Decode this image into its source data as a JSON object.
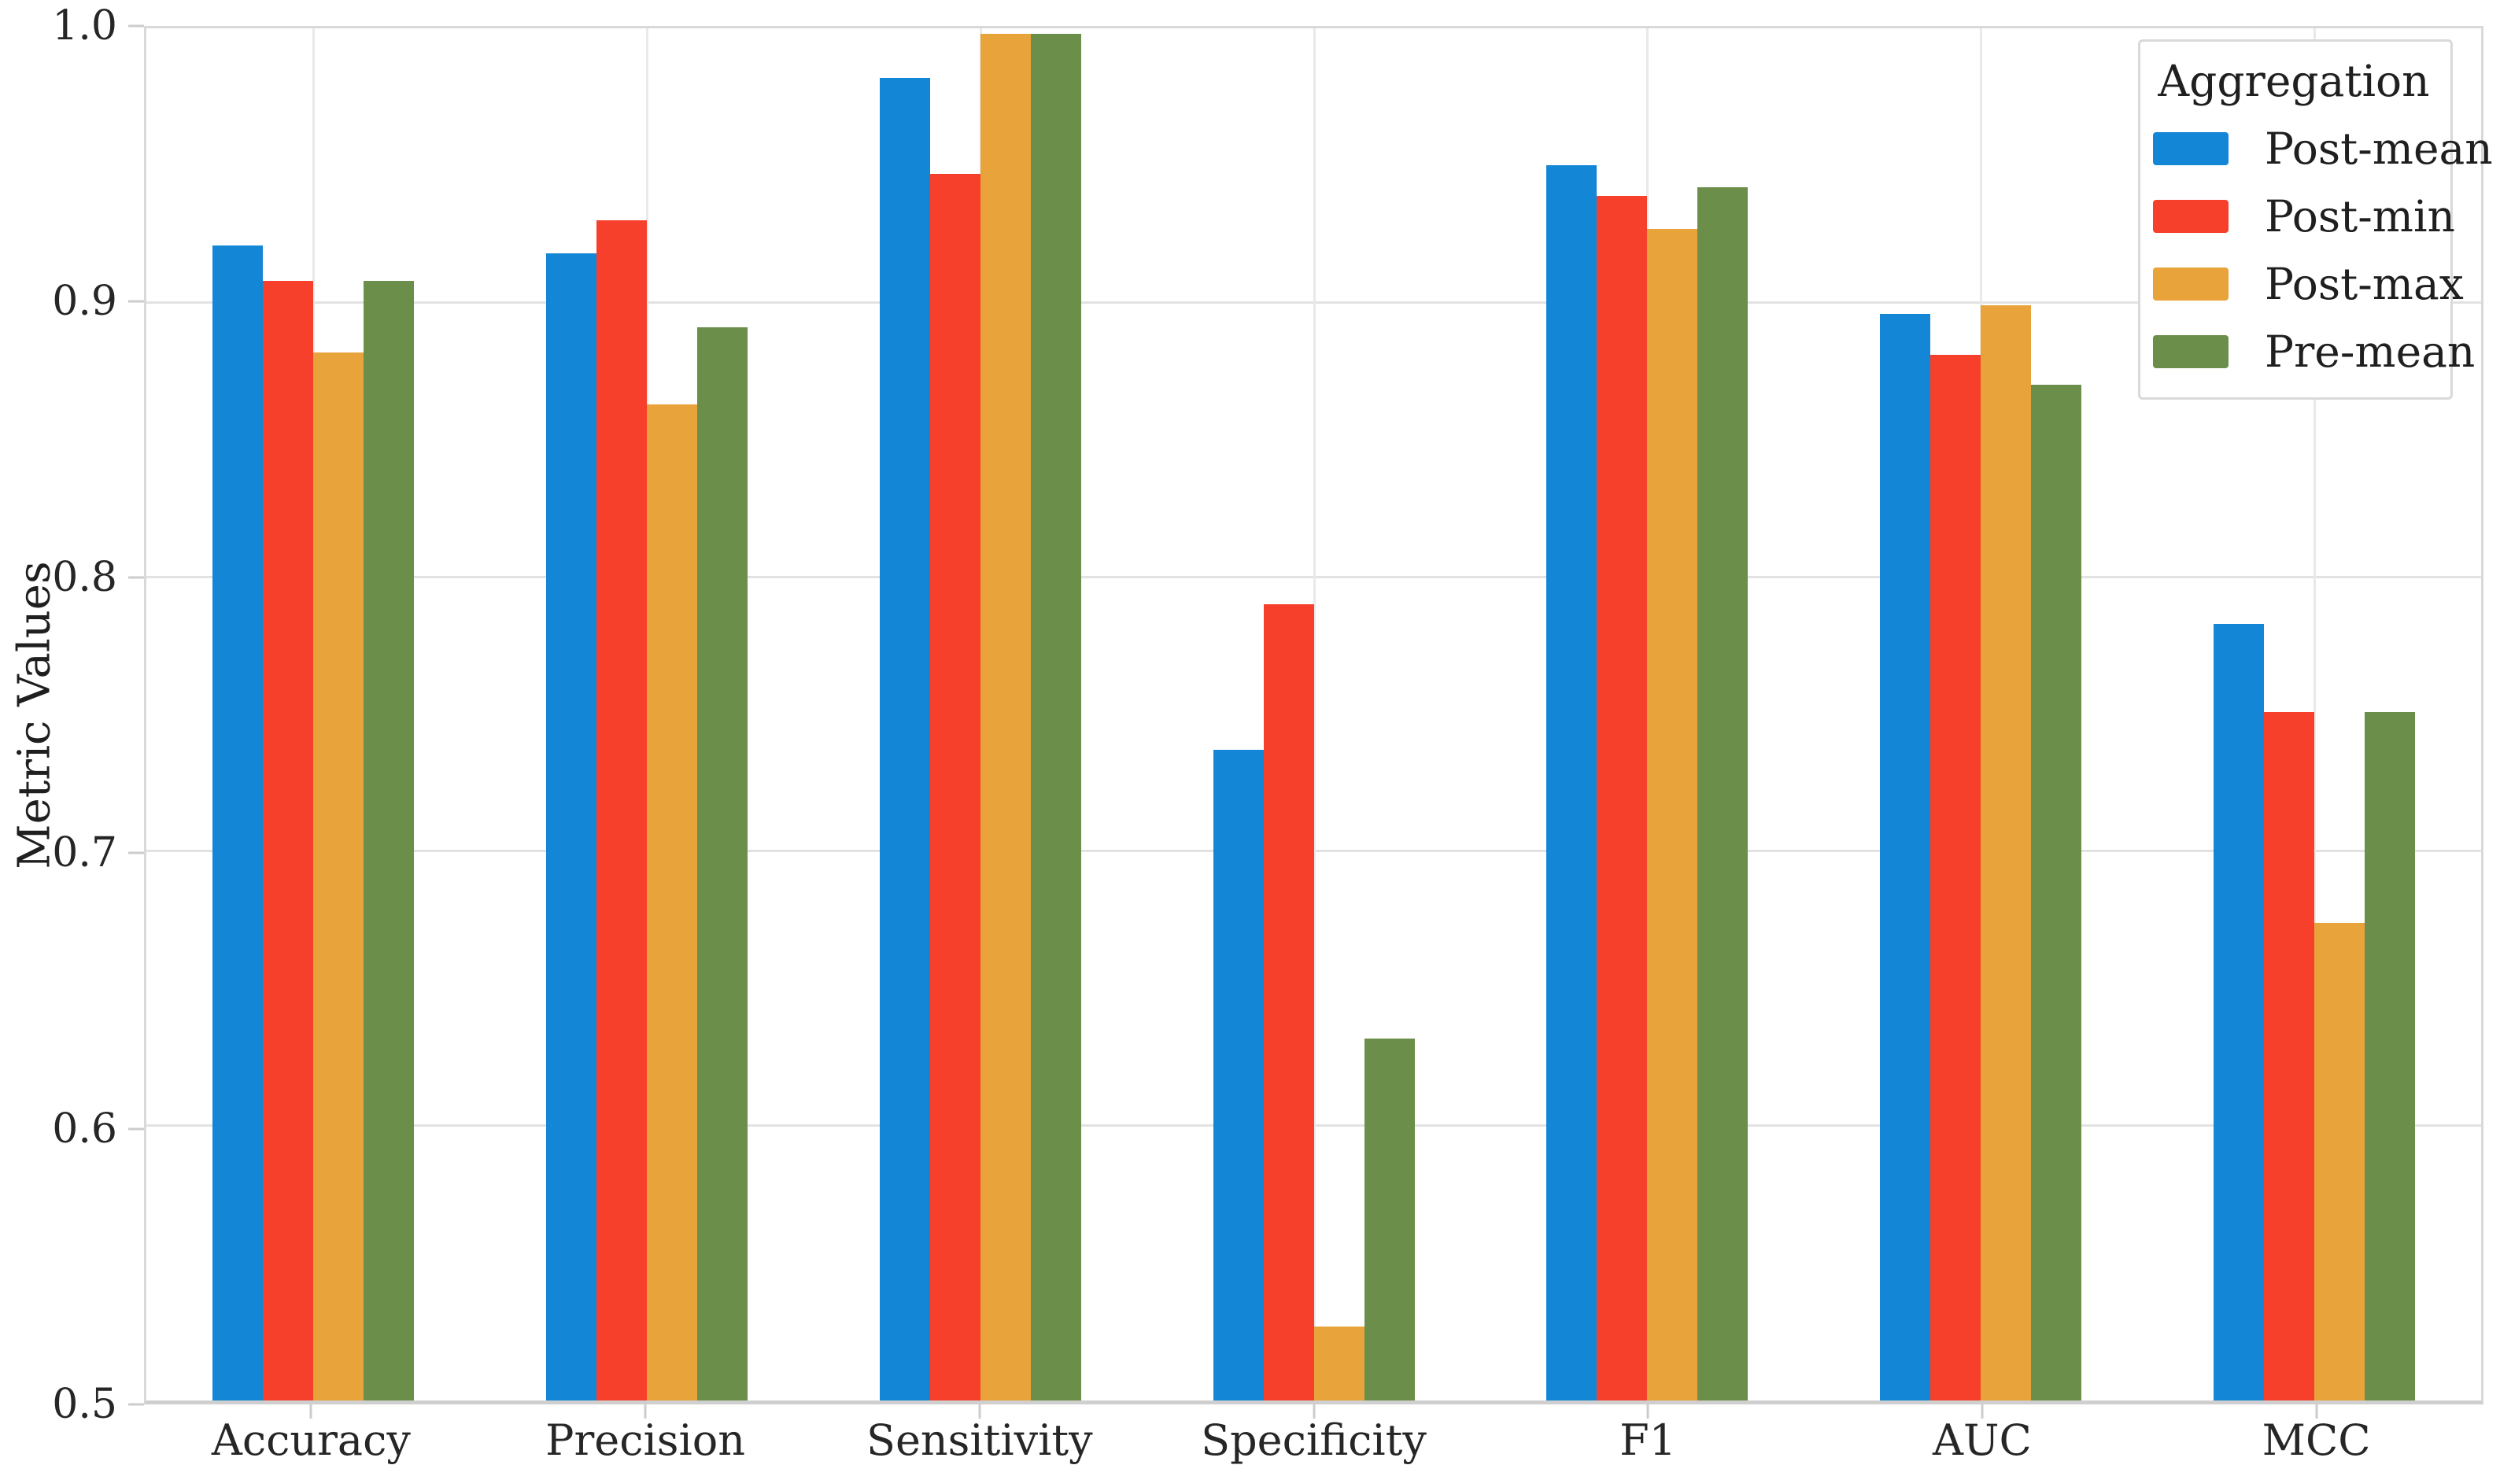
{
  "chart_data": {
    "type": "bar",
    "title": "",
    "xlabel": "",
    "ylabel": "Metric Values",
    "ylim": [
      0.5,
      1.0
    ],
    "yticks": [
      "0.5",
      "0.6",
      "0.7",
      "0.8",
      "0.9",
      "1.0"
    ],
    "grid": true,
    "legend_title": "Aggregation",
    "legend_position": "upper right",
    "categories": [
      "Accuracy",
      "Precision",
      "Sensitivity",
      "Specificity",
      "F1",
      "AUC",
      "MCC"
    ],
    "series": [
      {
        "name": "Post-mean",
        "color": "#1386d6",
        "values": [
          0.921,
          0.918,
          0.982,
          0.737,
          0.95,
          0.896,
          0.783
        ]
      },
      {
        "name": "Post-min",
        "color": "#f6402c",
        "values": [
          0.908,
          0.93,
          0.947,
          0.79,
          0.939,
          0.881,
          0.751
        ]
      },
      {
        "name": "Post-max",
        "color": "#e8a33a",
        "values": [
          0.882,
          0.863,
          0.998,
          0.527,
          0.927,
          0.899,
          0.674
        ]
      },
      {
        "name": "Pre-mean",
        "color": "#6b8e4a",
        "values": [
          0.908,
          0.891,
          0.998,
          0.632,
          0.942,
          0.87,
          0.751
        ]
      }
    ]
  }
}
